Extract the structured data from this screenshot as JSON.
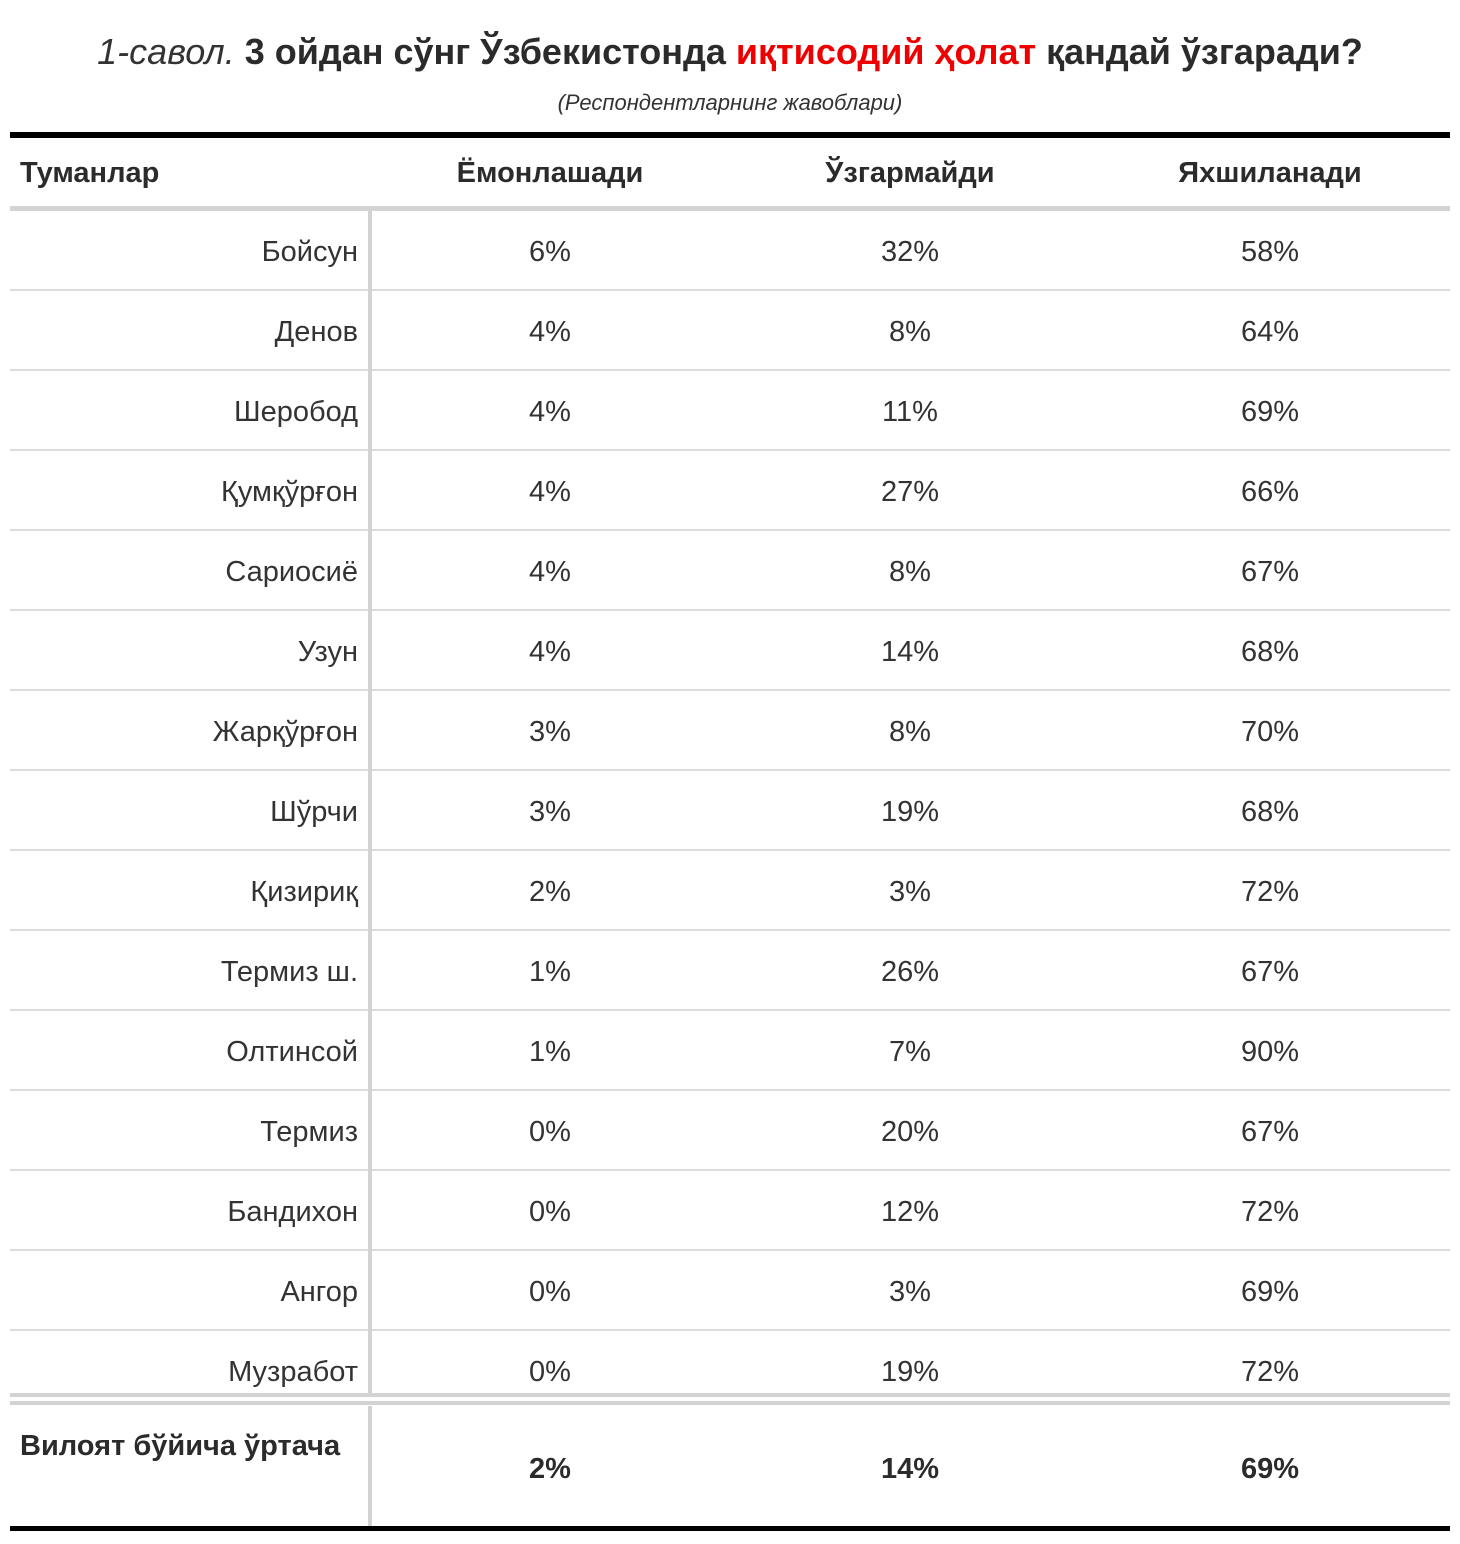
{
  "title": {
    "question": "1-савол.",
    "part1": "3 ойдан сўнг Ўзбекистонда",
    "highlight": "иқтисодий ҳолат",
    "part2": "қандай ўзгаради?",
    "highlight_color": "#ee0000"
  },
  "subtitle": "(Респондентларнинг жавоблари)",
  "chart_data": {
    "type": "table",
    "columns": [
      "Туманлар",
      "Ёмонлашади",
      "Ўзгармайди",
      "Яхшиланади"
    ],
    "rows": [
      {
        "name": "Бойсун",
        "worse": "6%",
        "same": "32%",
        "better": "58%"
      },
      {
        "name": "Денов",
        "worse": "4%",
        "same": "8%",
        "better": "64%"
      },
      {
        "name": "Шеробод",
        "worse": "4%",
        "same": "11%",
        "better": "69%"
      },
      {
        "name": "Қумқўрғон",
        "worse": "4%",
        "same": "27%",
        "better": "66%"
      },
      {
        "name": "Сариосиё",
        "worse": "4%",
        "same": "8%",
        "better": "67%"
      },
      {
        "name": "Узун",
        "worse": "4%",
        "same": "14%",
        "better": "68%"
      },
      {
        "name": "Жарқўрғон",
        "worse": "3%",
        "same": "8%",
        "better": "70%"
      },
      {
        "name": "Шўрчи",
        "worse": "3%",
        "same": "19%",
        "better": "68%"
      },
      {
        "name": "Қизириқ",
        "worse": "2%",
        "same": "3%",
        "better": "72%"
      },
      {
        "name": "Термиз ш.",
        "worse": "1%",
        "same": "26%",
        "better": "67%"
      },
      {
        "name": "Олтинсой",
        "worse": "1%",
        "same": "7%",
        "better": "90%"
      },
      {
        "name": "Термиз",
        "worse": "0%",
        "same": "20%",
        "better": "67%"
      },
      {
        "name": "Бандихон",
        "worse": "0%",
        "same": "12%",
        "better": "72%"
      },
      {
        "name": "Ангор",
        "worse": "0%",
        "same": "3%",
        "better": "69%"
      },
      {
        "name": "Музработ",
        "worse": "0%",
        "same": "19%",
        "better": "72%"
      }
    ],
    "footer": {
      "name": "Вилоят бўйича ўртача",
      "worse": "2%",
      "same": "14%",
      "better": "69%"
    }
  }
}
